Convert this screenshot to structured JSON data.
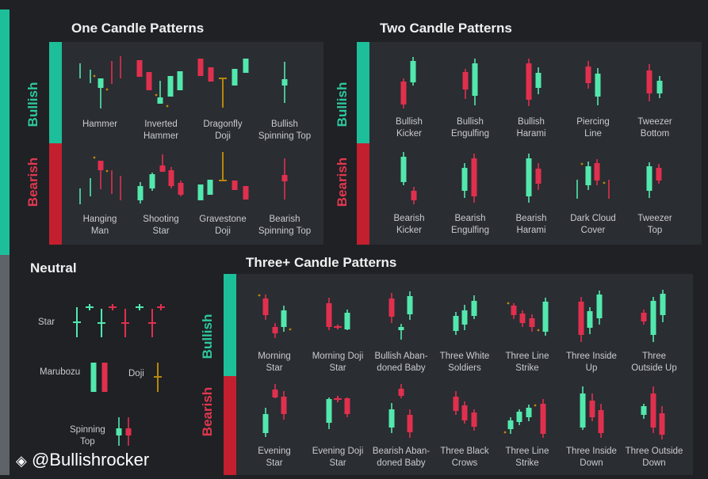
{
  "colors": {
    "bullish": "#2ec79d",
    "bearish": "#e0384f",
    "green_candle": "#52e8ad",
    "red_candle": "#e0304e",
    "doji": "#b8860b",
    "panel": "#2a2d32",
    "background": "#1f2125"
  },
  "sentiment": {
    "bullish": "Bullish",
    "bearish": "Bearish"
  },
  "one_candle": {
    "title": "One Candle Patterns",
    "bullish": [
      {
        "l1": "Hammer",
        "l2": ""
      },
      {
        "l1": "Inverted",
        "l2": "Hammer"
      },
      {
        "l1": "Dragonfly",
        "l2": "Doji"
      },
      {
        "l1": "Bullish",
        "l2": "Spinning Top"
      }
    ],
    "bearish": [
      {
        "l1": "Hanging",
        "l2": "Man"
      },
      {
        "l1": "Shooting",
        "l2": "Star"
      },
      {
        "l1": "Gravestone",
        "l2": "Doji"
      },
      {
        "l1": "Bearish",
        "l2": "Spinning Top"
      }
    ]
  },
  "two_candle": {
    "title": "Two Candle Patterns",
    "bullish": [
      {
        "l1": "Bullish",
        "l2": "Kicker"
      },
      {
        "l1": "Bullish",
        "l2": "Engulfing"
      },
      {
        "l1": "Bullish",
        "l2": "Harami"
      },
      {
        "l1": "Piercing",
        "l2": "Line"
      },
      {
        "l1": "Tweezer",
        "l2": "Bottom"
      }
    ],
    "bearish": [
      {
        "l1": "Bearish",
        "l2": "Kicker"
      },
      {
        "l1": "Bearish",
        "l2": "Engulfing"
      },
      {
        "l1": "Bearish",
        "l2": "Harami"
      },
      {
        "l1": "Dark Cloud",
        "l2": "Cover"
      },
      {
        "l1": "Tweezer",
        "l2": "Top"
      }
    ]
  },
  "three_candle": {
    "title": "Three+ Candle Patterns",
    "bullish": [
      {
        "l1": "Morning",
        "l2": "Star"
      },
      {
        "l1": "Morning Doji",
        "l2": "Star"
      },
      {
        "l1": "Bullish Aban-",
        "l2": "doned Baby"
      },
      {
        "l1": "Three White",
        "l2": "Soldiers"
      },
      {
        "l1": "Three Line",
        "l2": "Strike"
      },
      {
        "l1": "Three Inside",
        "l2": "Up"
      },
      {
        "l1": "Three",
        "l2": "Outside Up"
      }
    ],
    "bearish": [
      {
        "l1": "Evening",
        "l2": "Star"
      },
      {
        "l1": "Evening Doji",
        "l2": "Star"
      },
      {
        "l1": "Bearish Aban-",
        "l2": "doned Baby"
      },
      {
        "l1": "Three Black",
        "l2": "Crows"
      },
      {
        "l1": "Three Line",
        "l2": "Strike"
      },
      {
        "l1": "Three Inside",
        "l2": "Down"
      },
      {
        "l1": "Three Outside",
        "l2": "Down"
      }
    ]
  },
  "neutral": {
    "title": "Neutral",
    "star": "Star",
    "marubozu": "Marubozu",
    "doji": "Doji",
    "spinning_top_l1": "Spinning",
    "spinning_top_l2": "Top"
  },
  "watermark": "@Bullishrocker"
}
